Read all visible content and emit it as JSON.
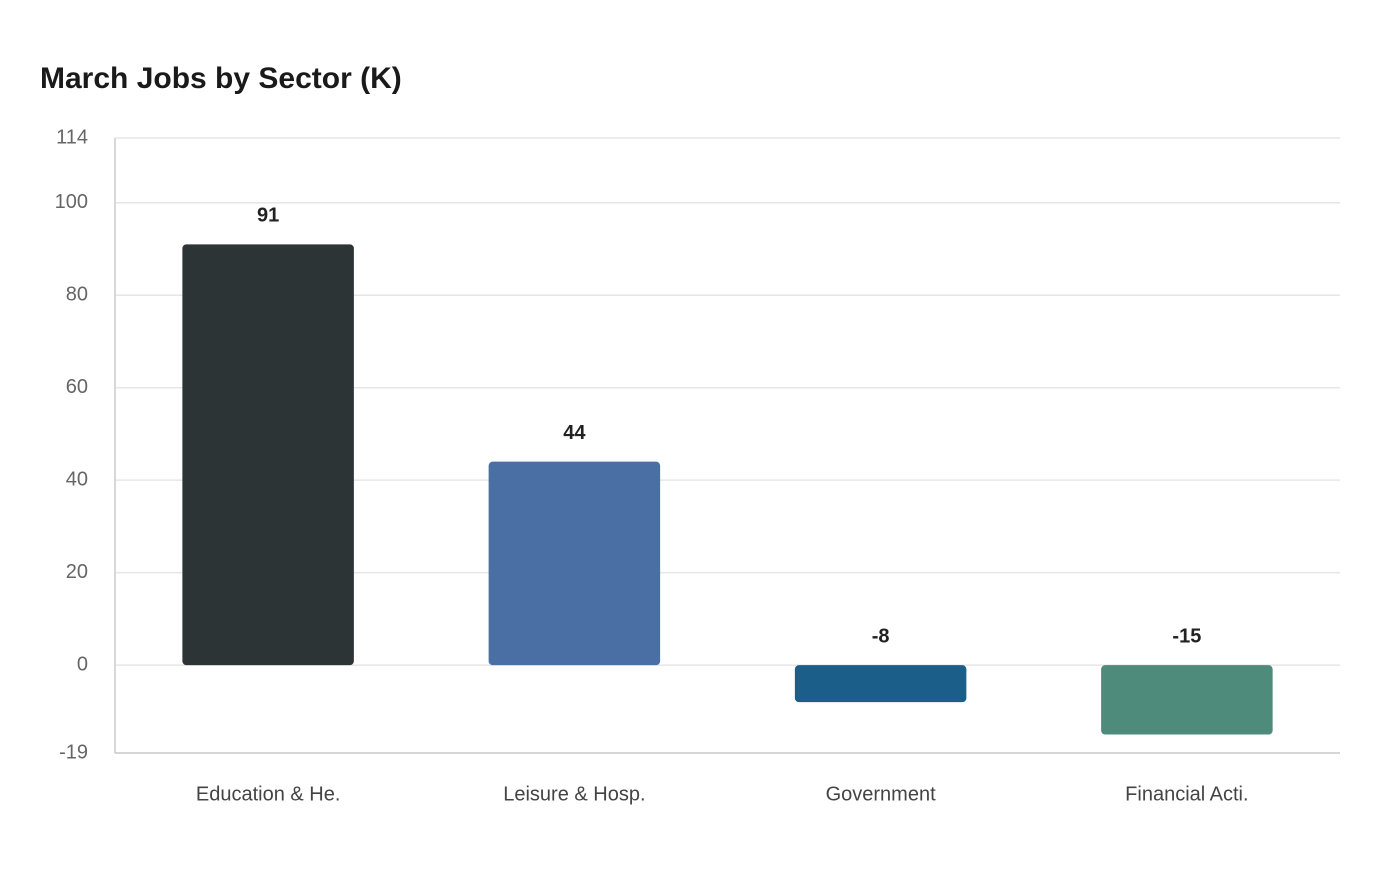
{
  "chart_data": {
    "type": "bar",
    "title": "March Jobs by Sector (K)",
    "categories": [
      "Education & He.",
      "Leisure & Hosp.",
      "Government",
      "Financial Acti."
    ],
    "values": [
      91,
      44,
      -8,
      -15
    ],
    "colors": [
      "#2d3436",
      "#4a6fa5",
      "#1b5e8a",
      "#4e8b7a"
    ],
    "ylim": [
      -19,
      114
    ],
    "yticks": [
      -19,
      0,
      20,
      40,
      60,
      80,
      100,
      114
    ],
    "grid": true
  }
}
